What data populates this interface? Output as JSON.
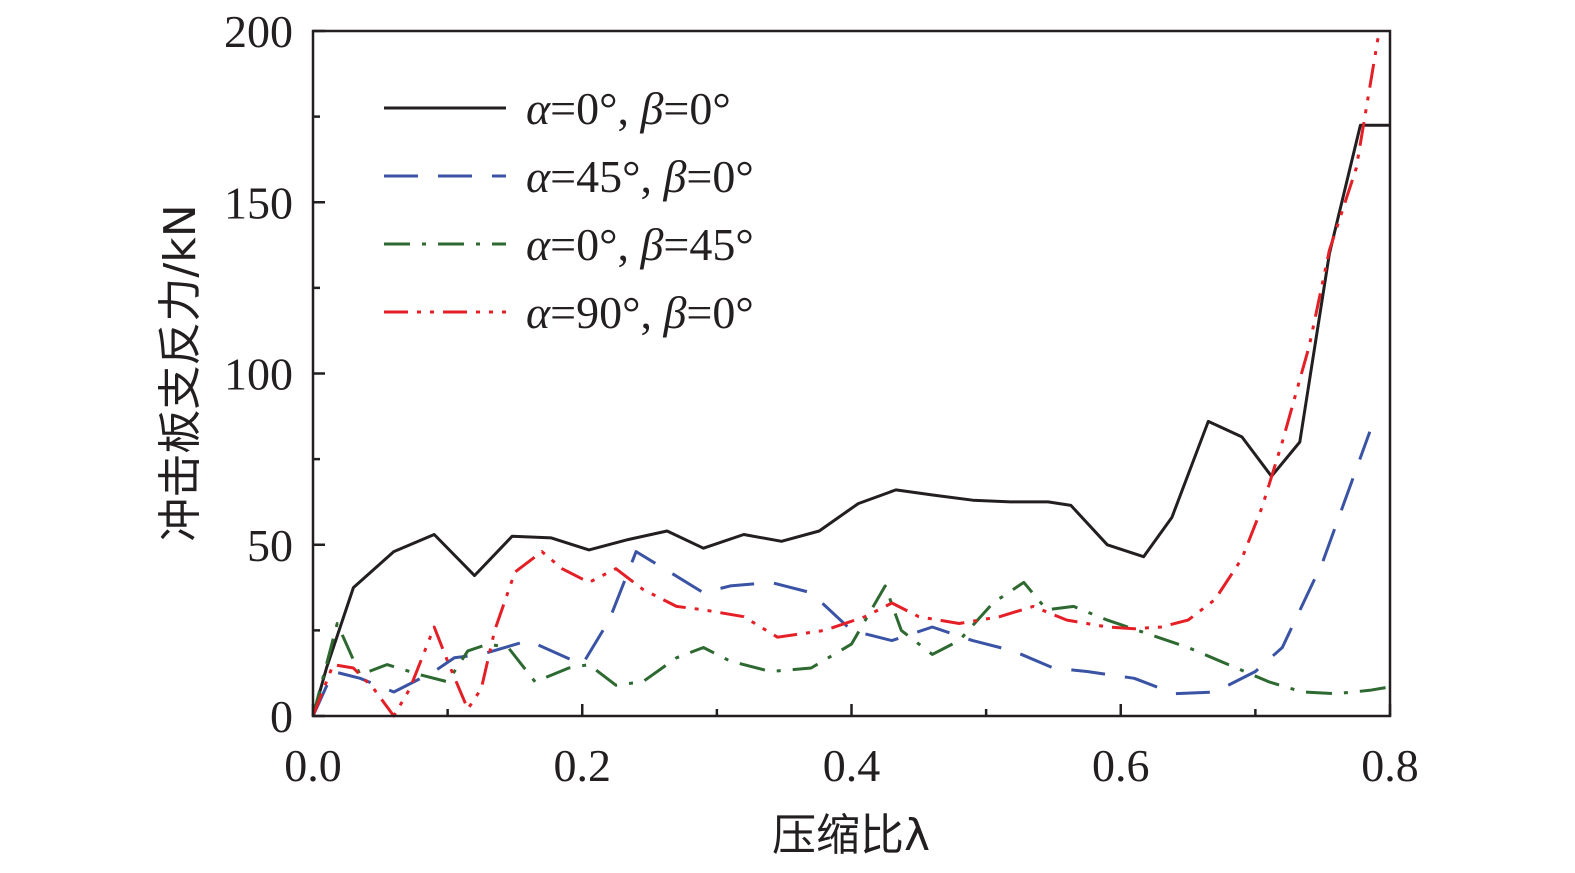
{
  "chart_data": {
    "type": "line",
    "title": "",
    "xlabel": "压缩比λ",
    "ylabel": "冲击板支反力/kN",
    "xlim": [
      0.0,
      0.8
    ],
    "ylim": [
      0,
      200
    ],
    "xticks": [
      "0.0",
      "0.2",
      "0.4",
      "0.6",
      "0.8"
    ],
    "yticks": [
      "0",
      "50",
      "100",
      "150",
      "200"
    ],
    "grid": false,
    "legend_position": "top-left",
    "series": [
      {
        "name": "α=0°, β=0°",
        "legend": {
          "a_sym": "α",
          "a_val": "=0°, ",
          "b_sym": "β",
          "b_val": "=0°"
        },
        "color": "#231f20",
        "dash": "solid",
        "x": [
          0.0,
          0.01,
          0.03,
          0.06,
          0.09,
          0.12,
          0.148,
          0.177,
          0.205,
          0.234,
          0.263,
          0.29,
          0.32,
          0.348,
          0.376,
          0.405,
          0.433,
          0.461,
          0.49,
          0.518,
          0.546,
          0.563,
          0.59,
          0.617,
          0.638,
          0.665,
          0.69,
          0.712,
          0.733,
          0.755,
          0.778,
          0.8
        ],
        "y": [
          0,
          14,
          37.5,
          48,
          53,
          41,
          52.5,
          52,
          48.5,
          51.5,
          54,
          49,
          53,
          51,
          54,
          62,
          66,
          64.5,
          63,
          62.5,
          62.5,
          61.5,
          50,
          46.5,
          58,
          86,
          81.5,
          70,
          80,
          135,
          172.5,
          172.5
        ]
      },
      {
        "name": "α=45°, β=0°",
        "legend": {
          "a_sym": "α",
          "a_val": "=45°, ",
          "b_sym": "β",
          "b_val": "=0°"
        },
        "color": "#3a53a4",
        "dash": "long-dash",
        "x": [
          0.0,
          0.015,
          0.035,
          0.06,
          0.09,
          0.105,
          0.125,
          0.16,
          0.2,
          0.22,
          0.24,
          0.265,
          0.29,
          0.31,
          0.34,
          0.37,
          0.4,
          0.43,
          0.46,
          0.49,
          0.52,
          0.55,
          0.575,
          0.61,
          0.64,
          0.67,
          0.7,
          0.72,
          0.75,
          0.785
        ],
        "y": [
          0,
          13,
          11,
          7,
          13,
          17,
          18,
          22,
          15,
          28,
          48,
          42,
          36,
          38,
          39,
          36,
          25,
          22,
          26,
          22,
          19,
          14,
          13,
          11,
          6.5,
          7,
          13,
          20,
          45,
          83
        ]
      },
      {
        "name": "α=0°, β=45°",
        "legend": {
          "a_sym": "α",
          "a_val": "=0°, ",
          "b_sym": "β",
          "b_val": "=45°"
        },
        "color": "#2d6930",
        "dash": "dash-dot",
        "x": [
          0.0,
          0.018,
          0.035,
          0.055,
          0.08,
          0.1,
          0.115,
          0.13,
          0.145,
          0.165,
          0.19,
          0.205,
          0.225,
          0.245,
          0.27,
          0.29,
          0.31,
          0.34,
          0.37,
          0.4,
          0.425,
          0.437,
          0.46,
          0.48,
          0.505,
          0.528,
          0.545,
          0.565,
          0.59,
          0.62,
          0.65,
          0.68,
          0.71,
          0.735,
          0.76,
          0.785,
          0.8
        ],
        "y": [
          0,
          27,
          12,
          15,
          12,
          10,
          19,
          21,
          20,
          10,
          14,
          15,
          9,
          10,
          17,
          20,
          16,
          13,
          14,
          21,
          38,
          25,
          18,
          22,
          33,
          39,
          31,
          32,
          28,
          24,
          20,
          15,
          10,
          7,
          6.5,
          7.5,
          8.5
        ]
      },
      {
        "name": "α=90°, β=0°",
        "legend": {
          "a_sym": "α",
          "a_val": "=90°, ",
          "b_sym": "β",
          "b_val": "=0°"
        },
        "color": "#e41f26",
        "dash": "dash-dot-dot",
        "x": [
          0.0,
          0.015,
          0.03,
          0.045,
          0.06,
          0.072,
          0.09,
          0.1,
          0.115,
          0.125,
          0.135,
          0.15,
          0.17,
          0.185,
          0.205,
          0.225,
          0.245,
          0.27,
          0.29,
          0.32,
          0.345,
          0.38,
          0.41,
          0.43,
          0.45,
          0.48,
          0.51,
          0.535,
          0.56,
          0.59,
          0.61,
          0.63,
          0.65,
          0.67,
          0.69,
          0.705,
          0.72,
          0.74,
          0.755,
          0.775,
          0.792
        ],
        "y": [
          0,
          15,
          14,
          8,
          0,
          8,
          26,
          16,
          2,
          8,
          25,
          42,
          48,
          43,
          39,
          43,
          37,
          32,
          31,
          29,
          23,
          25,
          29,
          33,
          29,
          27,
          29,
          32,
          28,
          26,
          25.5,
          26,
          28,
          34,
          46,
          61,
          80,
          108,
          136,
          160,
          200
        ]
      }
    ]
  }
}
